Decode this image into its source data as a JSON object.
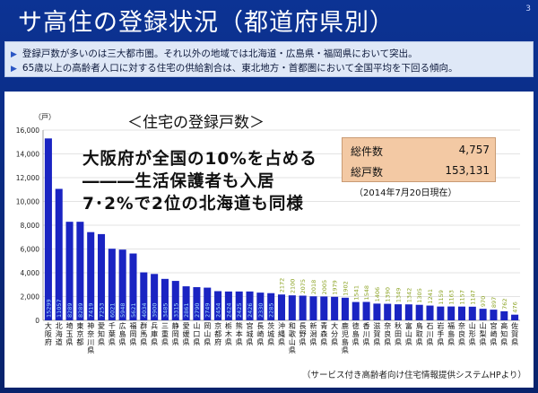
{
  "page": {
    "title": "サ高住の登録状況（都道府県別）",
    "page_number": "3"
  },
  "bullets": [
    "登録戸数が多いのは三大都市圏。それ以外の地域では北海道・広島県・福岡県において突出。",
    "65歳以上の高齢者人口に対する住宅の供給割合は、東北地方・首都圏において全国平均を下回る傾向。"
  ],
  "chart_title": "＜住宅の登録戸数＞",
  "headline": [
    "大阪府が全国の10%を占める",
    "―――生活保護者も入居",
    "7･2%で2位の北海道も同様"
  ],
  "summary": {
    "rows": [
      {
        "label": "総件数",
        "value": "4,757"
      },
      {
        "label": "総戸数",
        "value": "153,131"
      }
    ]
  },
  "as_of": "（2014年7月20日現在）",
  "source": "（サービス付き高齢者向け住宅情報提供システムHPより）",
  "colors": {
    "bar": "#1a24c2",
    "background": "#0b2a78",
    "summary_box": "#f3c9a4"
  },
  "chart_data": {
    "type": "bar",
    "y_unit": "（戸）",
    "ylim": [
      0,
      16000
    ],
    "yticks": [
      0,
      2000,
      4000,
      6000,
      8000,
      10000,
      12000,
      14000,
      16000
    ],
    "ytick_labels": [
      "0",
      "2,000",
      "4,000",
      "6,000",
      "8,000",
      "10,000",
      "12,000",
      "14,000",
      "16,000"
    ],
    "categories": [
      "大阪府",
      "北海道",
      "埼玉県",
      "東京都",
      "神奈川県",
      "愛知県",
      "千葉県",
      "広島県",
      "福岡県",
      "群馬県",
      "兵庫県",
      "三重県",
      "静岡県",
      "愛媛県",
      "山口県",
      "岡山県",
      "京都府",
      "栃木県",
      "熊本県",
      "宮城県",
      "長崎県",
      "茨城県",
      "沖縄県",
      "和歌山県",
      "長野県",
      "新潟県",
      "青森県",
      "大分県",
      "鹿児島県",
      "徳島県",
      "香川県",
      "滋賀県",
      "奈良県",
      "秋田県",
      "富山県",
      "鳥取県",
      "石川県",
      "岩手県",
      "福島県",
      "奈良県",
      "山形県",
      "山梨県",
      "宮崎県",
      "高知県",
      "佐賀県"
    ],
    "values": [
      15299,
      11057,
      8289,
      8289,
      7419,
      7253,
      6021,
      5948,
      5621,
      4034,
      3900,
      3485,
      3315,
      2861,
      2790,
      2749,
      2454,
      2424,
      2425,
      2426,
      2330,
      2285,
      2172,
      2100,
      2075,
      2018,
      2005,
      1979,
      1902,
      1541,
      1548,
      1406,
      1390,
      1349,
      1342,
      1305,
      1241,
      1159,
      1163,
      1157,
      1147,
      970,
      897,
      762,
      476
    ],
    "data_labels": [
      "15299",
      "11057",
      "8289",
      "8289",
      "7419",
      "7253",
      "6021",
      "5948",
      "5621",
      "4034",
      "3900",
      "3485",
      "3315",
      "2861",
      "2790",
      "2749",
      "2454",
      "2424",
      "2425",
      "2426",
      "2330",
      "2285",
      "2172",
      "2100",
      "2075",
      "2018",
      "2005",
      "1979",
      "1902",
      "1541",
      "1548",
      "1406",
      "1390",
      "1349",
      "1342",
      "1305",
      "1241",
      "1159",
      "1163",
      "1157",
      "1147",
      "970",
      "897",
      "762",
      "476"
    ],
    "grid": true,
    "legend": "none"
  }
}
